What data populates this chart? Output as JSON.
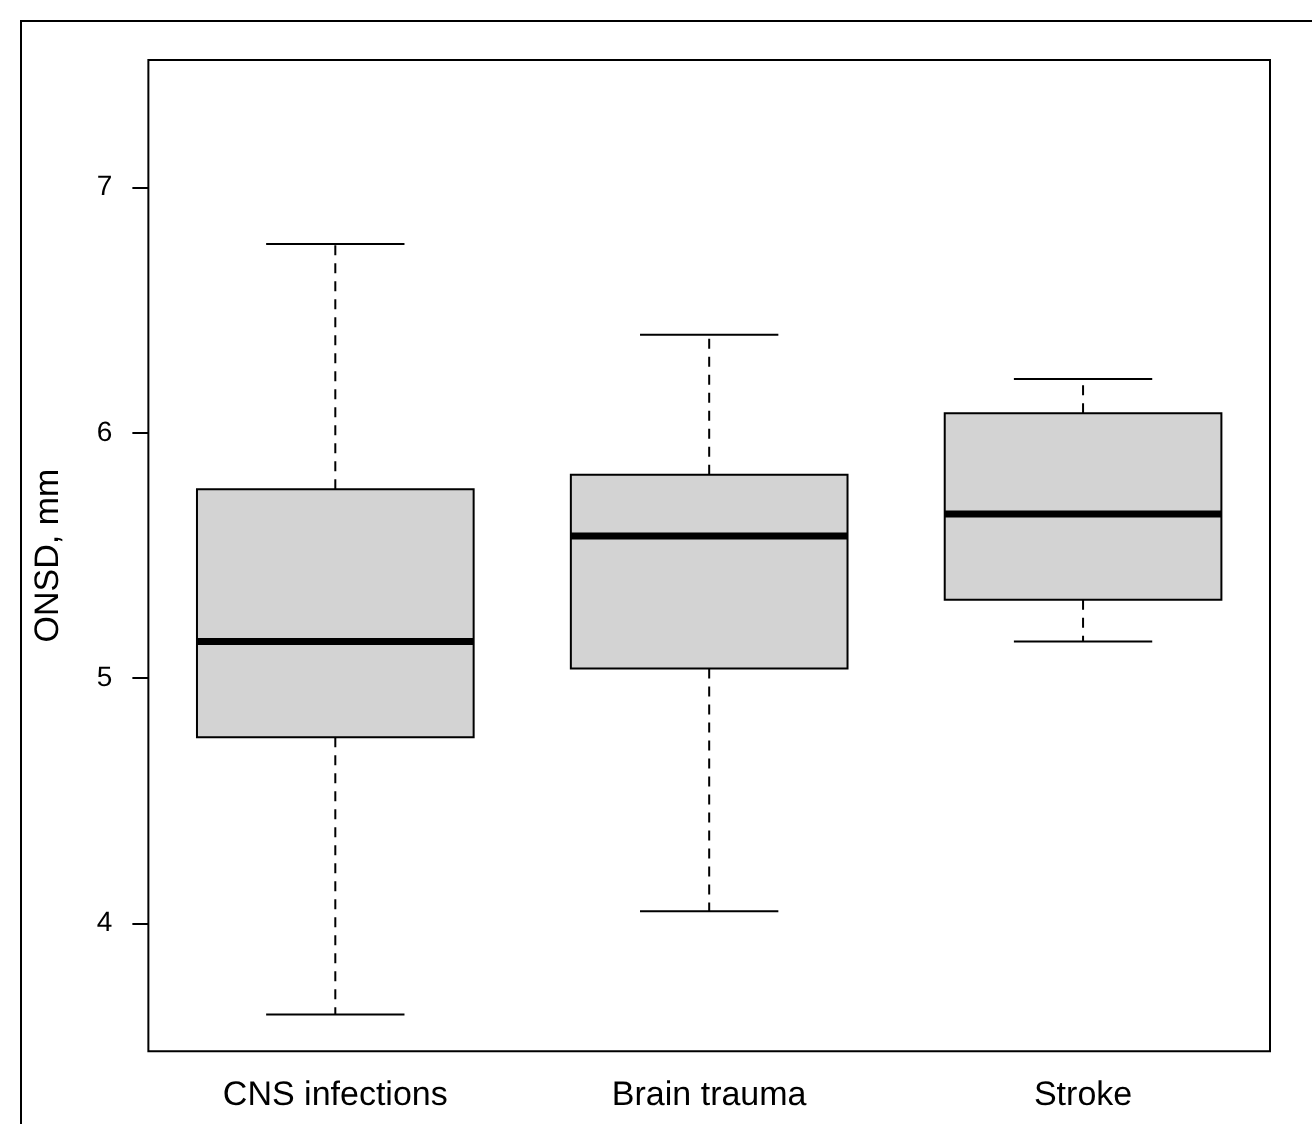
{
  "chart_data": {
    "type": "box",
    "ylabel": "ONSD, mm",
    "categories": [
      "CNS infections",
      "Brain trauma",
      "Stroke"
    ],
    "boxes": [
      {
        "low": 3.63,
        "q1": 4.76,
        "median": 5.15,
        "q3": 5.77,
        "high": 6.77
      },
      {
        "low": 4.05,
        "q1": 5.04,
        "median": 5.58,
        "q3": 5.83,
        "high": 6.4
      },
      {
        "low": 5.15,
        "q1": 5.32,
        "median": 5.67,
        "q3": 6.08,
        "high": 6.22
      }
    ],
    "color": "#d3d3d3",
    "ylim": [
      3.48,
      7.52
    ],
    "yticks": [
      4,
      5,
      6,
      7
    ],
    "grid": false,
    "legend": false
  }
}
